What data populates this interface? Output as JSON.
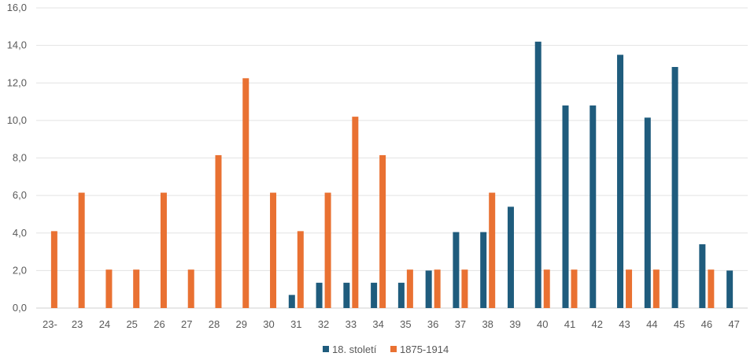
{
  "chart_data": {
    "type": "bar",
    "title": "",
    "xlabel": "",
    "ylabel": "",
    "ylim": [
      0,
      16
    ],
    "yticks": [
      "0,0",
      "2,0",
      "4,0",
      "6,0",
      "8,0",
      "10,0",
      "12,0",
      "14,0",
      "16,0"
    ],
    "grid": true,
    "legend_position": "bottom",
    "categories": [
      "23-",
      "23",
      "24",
      "25",
      "26",
      "27",
      "28",
      "29",
      "30",
      "31",
      "32",
      "33",
      "34",
      "35",
      "36",
      "37",
      "38",
      "39",
      "40",
      "41",
      "42",
      "43",
      "44",
      "45",
      "46",
      "47"
    ],
    "series": [
      {
        "name": "18. století",
        "color": "#1f5c7d",
        "values": [
          0,
          0,
          0,
          0,
          0,
          0,
          0,
          0,
          0,
          0.7,
          1.35,
          1.35,
          1.35,
          1.35,
          2.0,
          4.05,
          4.05,
          5.4,
          14.2,
          10.8,
          10.8,
          13.5,
          10.15,
          12.85,
          3.4,
          2.0
        ]
      },
      {
        "name": "1875-1914",
        "color": "#e97132",
        "values": [
          4.1,
          6.15,
          2.05,
          2.05,
          6.15,
          2.05,
          8.15,
          12.25,
          6.15,
          4.1,
          6.15,
          10.2,
          8.15,
          2.05,
          2.05,
          2.05,
          6.15,
          0,
          2.05,
          2.05,
          0,
          2.05,
          2.05,
          0,
          2.05,
          0
        ]
      }
    ]
  }
}
